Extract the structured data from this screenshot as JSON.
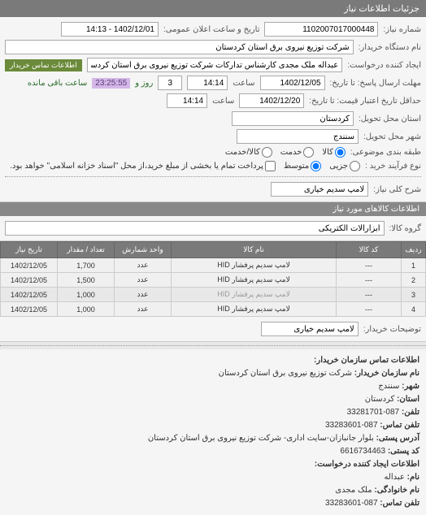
{
  "header": {
    "title": "جزئیات اطلاعات نیاز"
  },
  "fields": {
    "request_number_label": "شماره نیاز:",
    "request_number": "1102007017000448",
    "announce_label": "تاریخ و ساعت اعلان عمومی:",
    "announce_value": "1402/12/01 - 14:13",
    "buyer_org_label": "نام دستگاه خریدار:",
    "buyer_org": "شرکت توزیع نیروی برق استان کردستان",
    "requester_label": "ایجاد کننده درخواست:",
    "requester": "عبداله ملک مجدی کارشناس تدارکات شرکت توزیع نیروی برق استان کردستان",
    "contact_btn": "اطلاعات تماس خریدار",
    "deadline_label": "مهلت ارسال پاسخ: تا تاریخ:",
    "deadline_date": "1402/12/05",
    "deadline_time_label": "ساعت",
    "deadline_time": "14:14",
    "days_remain": "3",
    "days_remain_label": "روز و",
    "timer": "23:25:55",
    "timer_label": "ساعت باقی مانده",
    "validity_label": "حداقل تاریخ اعتبار قیمت: تا تاریخ:",
    "validity_date": "1402/12/20",
    "validity_time": "14:14",
    "province_label": "استان محل تحویل:",
    "province": "کردستان",
    "city_label": "شهر محل تحویل:",
    "city": "سنندج",
    "category_label": "طبقه بندی موضوعی:",
    "cat_goods": "کالا",
    "cat_service": "خدمت",
    "cat_goods_service": "کالا/خدمت",
    "process_label": "نوع فرآیند خرید :",
    "proc_small": "جزیی",
    "proc_medium": "متوسط",
    "proc_note": "پرداخت تمام یا بخشی از مبلغ خرید،از محل \"اسناد خزانه اسلامی\" خواهد بود.",
    "desc_label": "شرح کلی نیاز:",
    "desc_value": "لامپ سدیم خیاری",
    "items_header": "اطلاعات کالاهای مورد نیاز",
    "group_label": "گروه کالا:",
    "group_value": "ابزارآلات الکتریکی",
    "buyer_note_label": "توضیحات خریدار:",
    "buyer_note_value": "لامپ سدیم خیاری"
  },
  "table": {
    "columns": [
      "ردیف",
      "کد کالا",
      "نام کالا",
      "واحد شمارش",
      "تعداد / مقدار",
      "تاریخ نیاز"
    ],
    "rows": [
      [
        "1",
        "---",
        "لامپ سدیم پرفشار HID",
        "عدد",
        "1,700",
        "1402/12/05"
      ],
      [
        "2",
        "---",
        "لامپ سدیم پرفشار HID",
        "عدد",
        "1,500",
        "1402/12/05"
      ],
      [
        "3",
        "---",
        "لامپ سدیم پرفشار HID",
        "عدد",
        "1,000",
        "1402/12/05"
      ],
      [
        "4",
        "---",
        "لامپ سدیم پرفشار HID",
        "عدد",
        "1,000",
        "1402/12/05"
      ]
    ],
    "watermark": "سامانه تدارکات مقاصد  ۰۲۱-۸۸۳۴۹۶۷۰"
  },
  "contact": {
    "header": "اطلاعات تماس سازمان خریدار:",
    "org_label": "نام سازمان خریدار:",
    "org": "شرکت توزیع نیروی برق استان کردستان",
    "city_label": "شهر:",
    "city": "سنندج",
    "province_label": "استان:",
    "province": "کردستان",
    "phone_label": "تلفن:",
    "phone": "087-33281701",
    "contact_phone_label": "تلفن تماس:",
    "contact_phone": "087-33283601",
    "address_label": "آدرس پستی:",
    "address": "بلوار جانبازان-سایت اداری- شرکت توزیع نیروی برق استان کردستان",
    "postal_label": "کد پستی:",
    "postal": "6616734463",
    "creator_header": "اطلاعات ایجاد کننده درخواست:",
    "name_label": "نام:",
    "name": "عبداله",
    "surname_label": "نام خانوادگی:",
    "surname": "ملک مجدی",
    "creator_phone_label": "تلفن تماس:",
    "creator_phone": "087-33283601"
  }
}
